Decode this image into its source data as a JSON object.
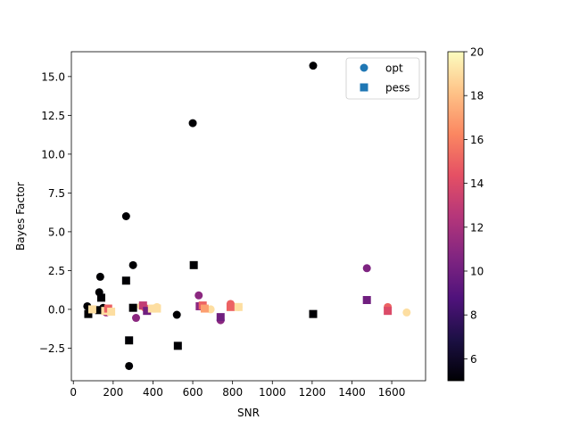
{
  "chart_data": {
    "type": "scatter",
    "xlabel": "SNR",
    "ylabel": "Bayes Factor",
    "xlim": [
      -10,
      1770
    ],
    "ylim": [
      -4.6,
      16.6
    ],
    "xticks": [
      0,
      200,
      400,
      600,
      800,
      1000,
      1200,
      1400,
      1600
    ],
    "yticks": [
      -2.5,
      0.0,
      2.5,
      5.0,
      7.5,
      10.0,
      12.5,
      15.0
    ],
    "ytick_labels": [
      "−2.5",
      "0.0",
      "2.5",
      "5.0",
      "7.5",
      "10.0",
      "12.5",
      "15.0"
    ],
    "legend": {
      "placement": "top-right",
      "entries": [
        {
          "label": "opt",
          "marker": "circle",
          "color": "#1f77b4"
        },
        {
          "label": "pess",
          "marker": "square",
          "color": "#1f77b4"
        }
      ]
    },
    "colorbar": {
      "colormap": "magma",
      "range": [
        5,
        20
      ],
      "ticks": [
        6,
        8,
        10,
        12,
        14,
        16,
        18,
        20
      ]
    },
    "series": [
      {
        "name": "opt",
        "marker": "circle",
        "points": [
          {
            "x": 1205,
            "y": 15.7,
            "c": 5
          },
          {
            "x": 600,
            "y": 12.0,
            "c": 5
          },
          {
            "x": 265,
            "y": 6.0,
            "c": 5
          },
          {
            "x": 300,
            "y": 2.85,
            "c": 5
          },
          {
            "x": 135,
            "y": 2.1,
            "c": 5
          },
          {
            "x": 130,
            "y": 1.1,
            "c": 5
          },
          {
            "x": 1475,
            "y": 2.65,
            "c": 10.5
          },
          {
            "x": 630,
            "y": 0.9,
            "c": 11
          },
          {
            "x": 70,
            "y": 0.2,
            "c": 5
          },
          {
            "x": 150,
            "y": 0.1,
            "c": 5
          },
          {
            "x": 315,
            "y": -0.55,
            "c": 11
          },
          {
            "x": 520,
            "y": -0.35,
            "c": 5
          },
          {
            "x": 740,
            "y": -0.7,
            "c": 11
          },
          {
            "x": 280,
            "y": -3.65,
            "c": 5
          },
          {
            "x": 790,
            "y": 0.35,
            "c": 15
          },
          {
            "x": 830,
            "y": 0.15,
            "c": 19
          },
          {
            "x": 1580,
            "y": 0.15,
            "c": 15
          },
          {
            "x": 1675,
            "y": -0.2,
            "c": 19
          },
          {
            "x": 100,
            "y": 0.0,
            "c": 19
          },
          {
            "x": 165,
            "y": -0.2,
            "c": 12
          },
          {
            "x": 180,
            "y": -0.15,
            "c": 19
          },
          {
            "x": 340,
            "y": 0.2,
            "c": 19
          },
          {
            "x": 360,
            "y": 0.1,
            "c": 15
          },
          {
            "x": 420,
            "y": 0.15,
            "c": 19
          },
          {
            "x": 690,
            "y": 0.0,
            "c": 19
          }
        ]
      },
      {
        "name": "pess",
        "marker": "square",
        "points": [
          {
            "x": 605,
            "y": 2.85,
            "c": 5
          },
          {
            "x": 265,
            "y": 1.85,
            "c": 5
          },
          {
            "x": 140,
            "y": 0.75,
            "c": 5
          },
          {
            "x": 1475,
            "y": 0.6,
            "c": 10
          },
          {
            "x": 300,
            "y": 0.1,
            "c": 5
          },
          {
            "x": 130,
            "y": -0.05,
            "c": 5
          },
          {
            "x": 75,
            "y": -0.3,
            "c": 5
          },
          {
            "x": 1205,
            "y": -0.3,
            "c": 5
          },
          {
            "x": 280,
            "y": -2.0,
            "c": 5
          },
          {
            "x": 525,
            "y": -2.35,
            "c": 5
          },
          {
            "x": 635,
            "y": 0.2,
            "c": 11
          },
          {
            "x": 650,
            "y": 0.25,
            "c": 15
          },
          {
            "x": 660,
            "y": 0.05,
            "c": 17
          },
          {
            "x": 740,
            "y": -0.5,
            "c": 10
          },
          {
            "x": 790,
            "y": 0.15,
            "c": 15
          },
          {
            "x": 830,
            "y": 0.15,
            "c": 19
          },
          {
            "x": 1580,
            "y": -0.1,
            "c": 14
          },
          {
            "x": 95,
            "y": 0.0,
            "c": 19
          },
          {
            "x": 160,
            "y": -0.1,
            "c": 19
          },
          {
            "x": 175,
            "y": 0.05,
            "c": 15
          },
          {
            "x": 190,
            "y": -0.15,
            "c": 19
          },
          {
            "x": 350,
            "y": 0.25,
            "c": 13
          },
          {
            "x": 370,
            "y": -0.1,
            "c": 10
          },
          {
            "x": 395,
            "y": 0.05,
            "c": 19
          },
          {
            "x": 420,
            "y": 0.05,
            "c": 19
          }
        ]
      }
    ]
  }
}
